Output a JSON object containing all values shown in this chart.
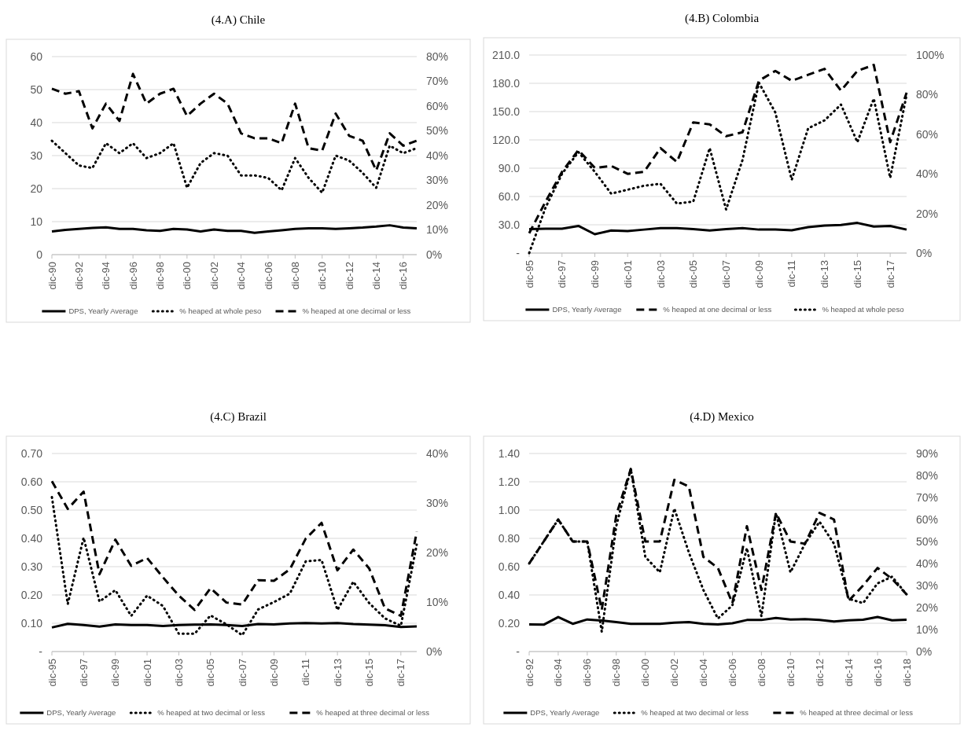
{
  "chart_data": [
    {
      "type": "line",
      "title": "(4.A) Chile",
      "categories": [
        "dic-90",
        null,
        "dic-92",
        null,
        "dic-94",
        null,
        "dic-96",
        null,
        "dic-98",
        null,
        "dic-00",
        null,
        "dic-02",
        null,
        "dic-04",
        null,
        "dic-06",
        null,
        "dic-08",
        null,
        "dic-10",
        null,
        "dic-12",
        null,
        "dic-14",
        null,
        "dic-16",
        null
      ],
      "ylim": [
        0,
        60
      ],
      "yticks": [
        0,
        10,
        20,
        30,
        40,
        50,
        60
      ],
      "y2lim": [
        0,
        80
      ],
      "y2ticks": [
        {
          "value": 0,
          "label": "0%"
        },
        {
          "value": 10,
          "label": "10%"
        },
        {
          "value": 20,
          "label": "20%"
        },
        {
          "value": 30,
          "label": "30%"
        },
        {
          "value": 40,
          "label": "40%"
        },
        {
          "value": 50,
          "label": "50%"
        },
        {
          "value": 60,
          "label": "60%"
        },
        {
          "value": 70,
          "label": "70%"
        },
        {
          "value": 80,
          "label": "80%"
        }
      ],
      "grid": "y",
      "legend": "bottom",
      "series": [
        {
          "name": "DPS, Yearly Average",
          "color": "#000000",
          "line_style": "solid",
          "values": [
            7.0,
            7.5,
            7.8,
            8.1,
            8.3,
            7.8,
            7.8,
            7.4,
            7.2,
            7.8,
            7.6,
            7.0,
            7.6,
            7.2,
            7.2,
            6.6,
            7.0,
            7.4,
            7.8,
            8.0,
            8.0,
            7.8,
            8.0,
            8.2,
            8.5,
            8.9,
            8.2,
            8.0
          ]
        },
        {
          "name": "% heaped at whole peso",
          "color": "#000000",
          "line_style": "dotted",
          "axis": "y2",
          "values": [
            46,
            41,
            36,
            35,
            45,
            41,
            45,
            39,
            41,
            45,
            27,
            37,
            41,
            40,
            32,
            32,
            31,
            26,
            39,
            31,
            25,
            40,
            38,
            33,
            27,
            44,
            41,
            43
          ]
        },
        {
          "name": "% heaped at one decimal or less",
          "color": "#000000",
          "line_style": "dashed",
          "axis": "y2",
          "values": [
            67,
            65,
            66,
            51,
            61,
            54,
            73,
            61,
            65,
            67,
            56,
            61,
            65,
            61,
            49,
            47,
            47,
            45,
            61,
            43,
            42,
            57,
            48,
            46,
            34,
            49,
            44,
            46
          ]
        }
      ]
    },
    {
      "type": "line",
      "title": "(4.B) Colombia",
      "categories": [
        "dic-95",
        null,
        "dic-97",
        null,
        "dic-99",
        null,
        "dic-01",
        null,
        "dic-03",
        null,
        "dic-05",
        null,
        "dic-07",
        null,
        "dic-09",
        null,
        "dic-11",
        null,
        "dic-13",
        null,
        "dic-15",
        null,
        "dic-17",
        null
      ],
      "ylim": [
        0,
        210
      ],
      "yticks": [
        {
          "value": 0,
          "label": "-"
        },
        {
          "value": 30,
          "label": "30.0"
        },
        {
          "value": 60,
          "label": "60.0"
        },
        {
          "value": 90,
          "label": "90.0"
        },
        {
          "value": 120,
          "label": "120.0"
        },
        {
          "value": 150,
          "label": "150.0"
        },
        {
          "value": 180,
          "label": "180.0"
        },
        {
          "value": 210,
          "label": "210.0"
        }
      ],
      "y2lim": [
        0,
        100
      ],
      "y2ticks": [
        {
          "value": 0,
          "label": "0%"
        },
        {
          "value": 20,
          "label": "20%"
        },
        {
          "value": 40,
          "label": "40%"
        },
        {
          "value": 60,
          "label": "60%"
        },
        {
          "value": 80,
          "label": "80%"
        },
        {
          "value": 100,
          "label": "100%"
        }
      ],
      "grid": "y",
      "legend": "bottom",
      "series": [
        {
          "name": "DPS, Yearly Average",
          "color": "#000000",
          "line_style": "solid",
          "values": [
            25.5,
            25.8,
            25.8,
            28.8,
            20,
            23.9,
            23.3,
            24.9,
            26.5,
            26.5,
            25.5,
            23.9,
            25.5,
            26.5,
            24.9,
            24.9,
            24.2,
            27.5,
            29.1,
            29.7,
            32,
            28.1,
            28.8,
            24.9
          ]
        },
        {
          "name": "% heaped at one decimal or less",
          "color": "#000000",
          "line_style": "dashed",
          "axis": "y2",
          "values": [
            10,
            26,
            41,
            52,
            43,
            44,
            40,
            41,
            53,
            46,
            66,
            65,
            59,
            61,
            87,
            92,
            87,
            90,
            93,
            82,
            92,
            95,
            56,
            81
          ]
        },
        {
          "name": "% heaped at whole peso",
          "color": "#000000",
          "line_style": "dotted",
          "axis": "y2",
          "values": [
            0,
            23,
            40,
            51,
            41,
            30,
            32,
            34,
            35,
            25,
            26,
            53,
            22,
            47,
            86,
            71,
            37,
            63,
            67,
            75,
            56,
            78,
            38,
            80
          ]
        }
      ]
    },
    {
      "type": "line",
      "title": "(4.C) Brazil",
      "categories": [
        "dic-95",
        null,
        "dic-97",
        null,
        "dic-99",
        null,
        "dic-01",
        null,
        "dic-03",
        null,
        "dic-05",
        null,
        "dic-07",
        null,
        "dic-09",
        null,
        "dic-11",
        null,
        "dic-13",
        null,
        "dic-15",
        null,
        "dic-17",
        null
      ],
      "ylim": [
        0,
        0.7
      ],
      "yticks": [
        {
          "value": 0,
          "label": "-"
        },
        {
          "value": 0.1,
          "label": "0.10"
        },
        {
          "value": 0.2,
          "label": "0.20"
        },
        {
          "value": 0.3,
          "label": "0.30"
        },
        {
          "value": 0.4,
          "label": "0.40"
        },
        {
          "value": 0.5,
          "label": "0.50"
        },
        {
          "value": 0.6,
          "label": "0.60"
        },
        {
          "value": 0.7,
          "label": "0.70"
        }
      ],
      "y2lim": [
        0,
        40
      ],
      "y2ticks": [
        {
          "value": 0,
          "label": "0%"
        },
        {
          "value": 10,
          "label": "10%"
        },
        {
          "value": 20,
          "label": "20%"
        },
        {
          "value": 30,
          "label": "30%"
        },
        {
          "value": 40,
          "label": "40%"
        }
      ],
      "grid": "y",
      "legend": "bottom",
      "series": [
        {
          "name": "DPS, Yearly Average",
          "color": "#000000",
          "line_style": "solid",
          "values": [
            0.085,
            0.098,
            0.094,
            0.088,
            0.096,
            0.094,
            0.094,
            0.09,
            0.094,
            0.095,
            0.096,
            0.094,
            0.09,
            0.097,
            0.096,
            0.099,
            0.101,
            0.099,
            0.101,
            0.097,
            0.095,
            0.093,
            0.087,
            0.089
          ]
        },
        {
          "name": "% heaped at two decimal or less",
          "color": "#000000",
          "line_style": "dotted",
          "axis": "y2",
          "values": [
            31.2,
            9.6,
            23,
            10.1,
            12.4,
            7.2,
            11.3,
            9.2,
            3.6,
            3.6,
            7.3,
            5.5,
            3.3,
            8.5,
            10,
            11.7,
            18.2,
            18.5,
            8.4,
            14.1,
            9.8,
            6.7,
            5.2,
            21.6
          ]
        },
        {
          "name": "% heaped at three decimal or less",
          "color": "#000000",
          "line_style": "dashed",
          "axis": "y2",
          "values": [
            34.4,
            28.8,
            32.3,
            15.6,
            22.6,
            17.3,
            18.9,
            15,
            11.3,
            8.4,
            12.8,
            9.9,
            9.5,
            14.4,
            14.3,
            16.6,
            22.8,
            26,
            16.4,
            20.6,
            16.8,
            8.7,
            7.2,
            24.2
          ]
        }
      ]
    },
    {
      "type": "line",
      "title": "(4.D) Mexico",
      "categories": [
        "dic-92",
        null,
        "dic-94",
        null,
        "dic-96",
        null,
        "dic-98",
        null,
        "dic-00",
        null,
        "dic-02",
        null,
        "dic-04",
        null,
        "dic-06",
        null,
        "dic-08",
        null,
        "dic-10",
        null,
        "dic-12",
        null,
        "dic-14",
        null,
        "dic-16",
        null,
        "dic-18"
      ],
      "ylim": [
        0,
        1.4
      ],
      "yticks": [
        {
          "value": 0,
          "label": "-"
        },
        {
          "value": 0.2,
          "label": "0.20"
        },
        {
          "value": 0.4,
          "label": "0.40"
        },
        {
          "value": 0.6,
          "label": "0.60"
        },
        {
          "value": 0.8,
          "label": "0.80"
        },
        {
          "value": 1,
          "label": "1.00"
        },
        {
          "value": 1.2,
          "label": "1.20"
        },
        {
          "value": 1.4,
          "label": "1.40"
        }
      ],
      "y2lim": [
        0,
        90
      ],
      "y2ticks": [
        {
          "value": 0,
          "label": "0%"
        },
        {
          "value": 10,
          "label": "10%"
        },
        {
          "value": 20,
          "label": "20%"
        },
        {
          "value": 30,
          "label": "30%"
        },
        {
          "value": 40,
          "label": "40%"
        },
        {
          "value": 50,
          "label": "50%"
        },
        {
          "value": 60,
          "label": "60%"
        },
        {
          "value": 70,
          "label": "70%"
        },
        {
          "value": 80,
          "label": "80%"
        },
        {
          "value": 90,
          "label": "90%"
        }
      ],
      "grid": "y",
      "legend": "bottom",
      "series": [
        {
          "name": "DPS, Yearly Average",
          "color": "#000000",
          "line_style": "solid",
          "values": [
            0.192,
            0.19,
            0.244,
            0.196,
            0.227,
            0.219,
            0.208,
            0.196,
            0.196,
            0.196,
            0.204,
            0.208,
            0.196,
            0.192,
            0.2,
            0.223,
            0.223,
            0.238,
            0.227,
            0.229,
            0.223,
            0.213,
            0.221,
            0.225,
            0.244,
            0.221,
            0.225
          ]
        },
        {
          "name": "% heaped at two decimal or less",
          "color": "#000000",
          "line_style": "dotted",
          "axis": "y2",
          "values": [
            40,
            50,
            60,
            50,
            50,
            9,
            57,
            83,
            43,
            36,
            65,
            45,
            28,
            15,
            21,
            47,
            16,
            63,
            36,
            49,
            59,
            49,
            24,
            22,
            31,
            34,
            26
          ]
        },
        {
          "name": "% heaped at three decimal or less",
          "color": "#000000",
          "line_style": "dashed",
          "axis": "y2",
          "values": [
            40,
            50,
            60,
            50,
            50,
            19,
            62,
            83,
            50,
            50,
            78,
            75,
            43,
            38,
            22,
            57,
            28,
            63,
            50,
            49,
            63,
            60,
            23,
            30,
            38,
            33,
            26
          ]
        }
      ]
    }
  ]
}
